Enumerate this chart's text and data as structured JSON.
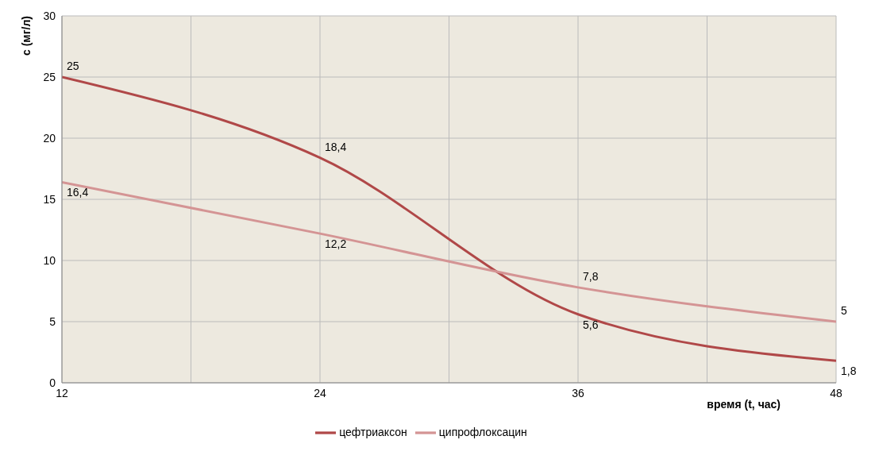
{
  "chart_data": {
    "type": "line",
    "ylabel": "с (мг/л)",
    "xlabel": "время (t, час)",
    "x": [
      12,
      24,
      36,
      48
    ],
    "series": [
      {
        "name": "цефтриаксон",
        "color": "#b04848",
        "values": [
          25,
          18.4,
          5.6,
          1.8
        ],
        "value_labels": [
          "25",
          "18,4",
          "5,6",
          "1,8"
        ]
      },
      {
        "name": "ципрофлоксацин",
        "color": "#d49494",
        "values": [
          16.4,
          12.2,
          7.8,
          5
        ],
        "value_labels": [
          "16,4",
          "12,2",
          "7,8",
          "5"
        ]
      }
    ],
    "xlim": [
      12,
      48
    ],
    "xticks": [
      12,
      {
        "value": 18,
        "label": null
      },
      24,
      {
        "value": 30,
        "label": null
      },
      36,
      {
        "value": 42,
        "label": null
      },
      48
    ],
    "ylim": [
      0,
      30
    ],
    "yticks": [
      0,
      5,
      10,
      15,
      20,
      25,
      30
    ],
    "grid": true,
    "legend": "bottom",
    "marker": "none",
    "line_style": "solid"
  }
}
